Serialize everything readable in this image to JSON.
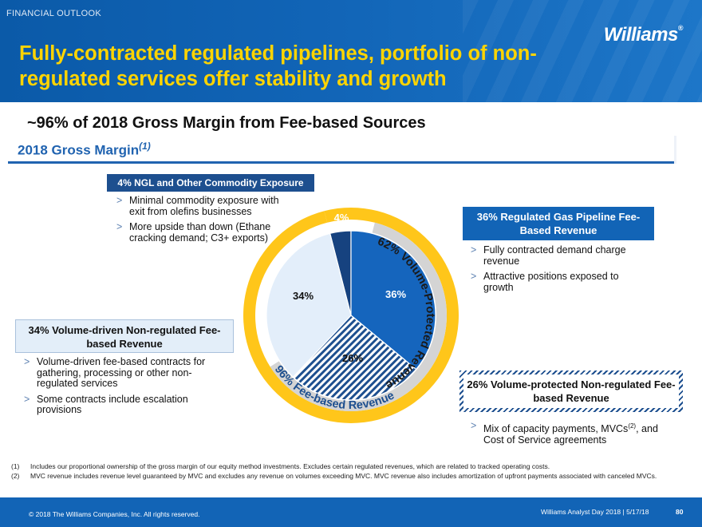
{
  "header": {
    "section_label": "FINANCIAL OUTLOOK",
    "title": "Fully-contracted regulated pipelines, portfolio of non-regulated services offer stability and growth",
    "logo_text": "Williams",
    "logo_mark": "®"
  },
  "subhead": "~96% of 2018 Gross Margin from Fee-based Sources",
  "gross_margin": {
    "title": "2018 Gross Margin",
    "title_note": "(1)"
  },
  "segments": {
    "ngl": {
      "heading": "4% NGL and Other Commodity Exposure",
      "bullets": [
        "Minimal commodity exposure with exit from olefins businesses",
        "More upside than down (Ethane cracking demand; C3+ exports)"
      ]
    },
    "regulated": {
      "heading": "36% Regulated Gas Pipeline Fee-Based Revenue",
      "bullets": [
        "Fully contracted demand charge revenue",
        "Attractive positions exposed to growth"
      ]
    },
    "volume_driven": {
      "heading": "34% Volume-driven Non-regulated Fee-based Revenue",
      "bullets": [
        "Volume-driven fee-based contracts for gathering, processing or other non-regulated services",
        "Some contracts include escalation provisions"
      ]
    },
    "volume_protected": {
      "heading": "26% Volume-protected Non-regulated Fee-based Revenue",
      "bullet_pre": "Mix of capacity payments, MVCs",
      "bullet_sup": "(2)",
      "bullet_post": ", and Cost of Service agreements"
    }
  },
  "bullet_marker": ">",
  "chart_data": {
    "type": "pie",
    "title": "2018 Gross Margin",
    "slices": [
      {
        "name": "NGL and Other Commodity Exposure",
        "value": 4,
        "label": "4%",
        "color": "#16427f"
      },
      {
        "name": "Regulated Gas Pipeline Fee-Based Revenue",
        "value": 36,
        "label": "36%",
        "color": "#1565bd"
      },
      {
        "name": "Volume-protected Non-regulated Fee-based Revenue",
        "value": 26,
        "label": "26%",
        "color": "#1d4f8f",
        "pattern": "diagonal-hatch"
      },
      {
        "name": "Volume-driven Non-regulated Fee-based Revenue",
        "value": 34,
        "label": "34%",
        "color": "#e3eefa"
      }
    ],
    "rings": [
      {
        "name": "Volume-Protected Revenue",
        "value": 62,
        "label": "62% Volume-Protected Revenue",
        "color": "#d4d4d4"
      },
      {
        "name": "Fee-based Revenue",
        "value": 96,
        "label": "96% Fee-based Revenue",
        "color": "#ffc61a"
      }
    ]
  },
  "footnotes": [
    {
      "num": "(1)",
      "text": "Includes our proportional ownership of the gross margin of our equity method investments. Excludes certain regulated revenues, which are related to tracked operating costs."
    },
    {
      "num": "(2)",
      "text": "MVC revenue includes revenue level guaranteed by MVC and excludes any revenue on volumes exceeding MVC.  MVC revenue also includes amortization of upfront payments associated with canceled MVCs."
    }
  ],
  "footer": {
    "copyright": "© 2018 The Williams Companies, Inc. All rights reserved.",
    "event": "Williams Analyst Day 2018  |  5/17/18",
    "page": "80"
  },
  "colors": {
    "brand_blue": "#1264b6",
    "title_yellow": "#ffd400",
    "ring_yellow": "#ffc61a",
    "ring_gray": "#d4d4d4"
  }
}
